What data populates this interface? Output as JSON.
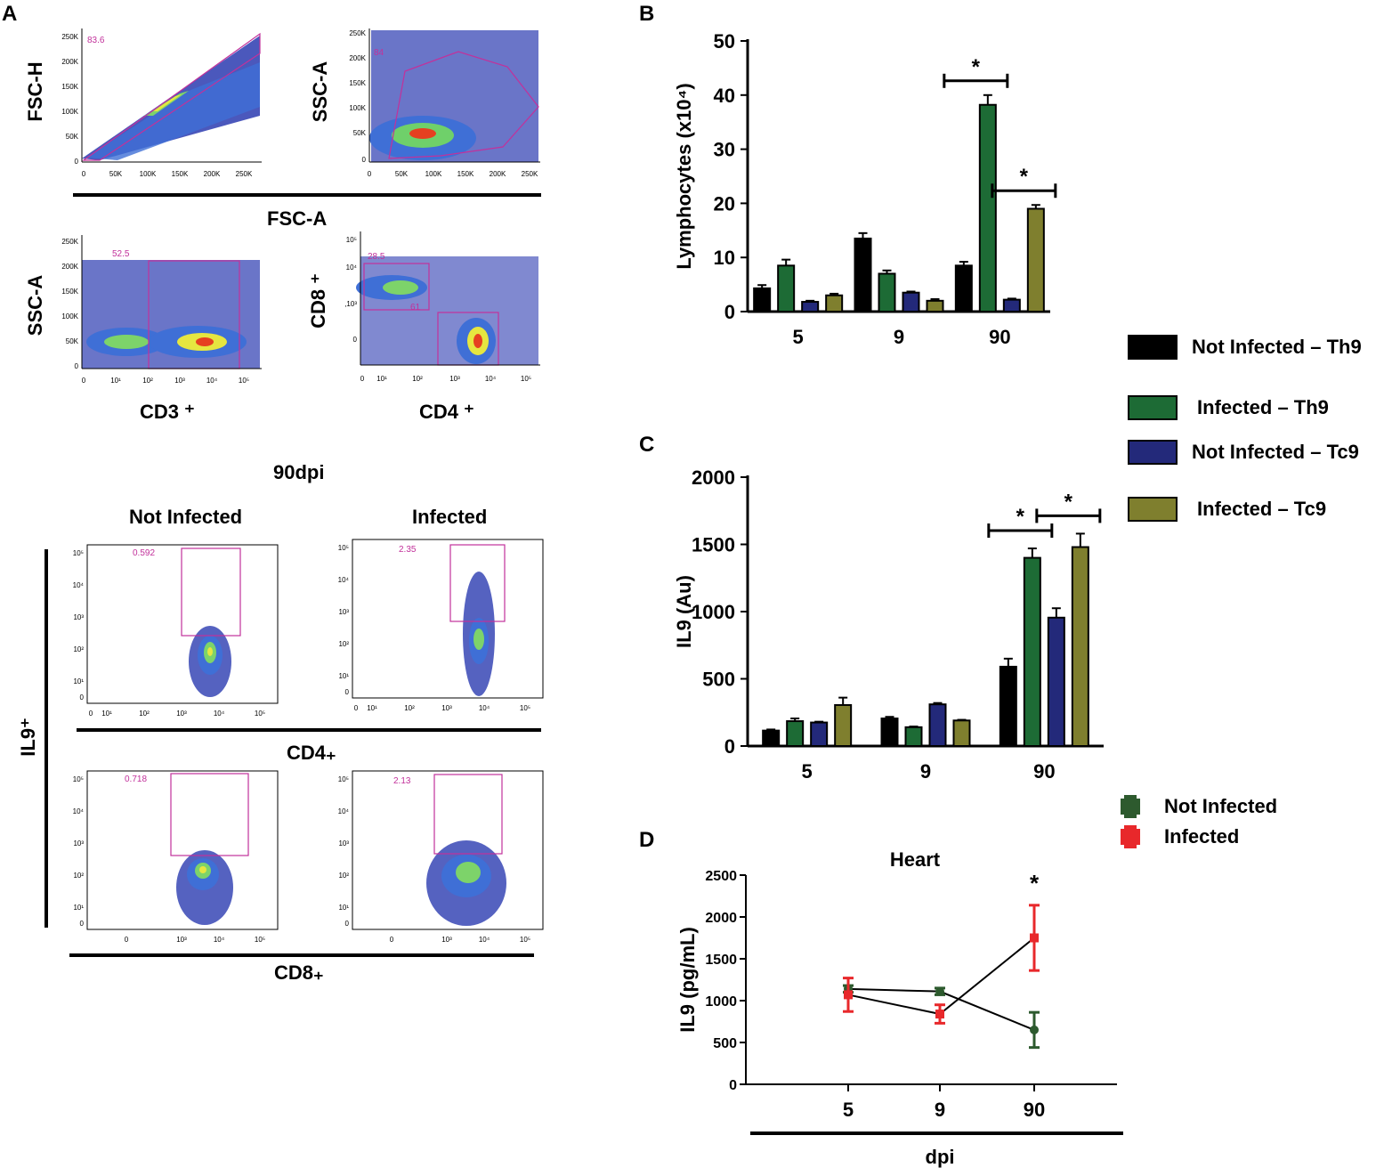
{
  "panels": {
    "A": "A",
    "B": "B",
    "C": "C",
    "D": "D"
  },
  "panel_a": {
    "top_row": {
      "plot1": {
        "ylabel": "FSC-H",
        "gate": "83.6",
        "yticks": [
          "250K",
          "200K",
          "150K",
          "100K",
          "50K",
          "0"
        ],
        "xticks": [
          "0",
          "50K",
          "100K",
          "150K",
          "200K",
          "250K"
        ]
      },
      "plot2": {
        "ylabel": "SSC-A",
        "gate": "84",
        "yticks": [
          "250K",
          "200K",
          "150K",
          "100K",
          "50K",
          "0"
        ],
        "xticks": [
          "0",
          "50K",
          "100K",
          "150K",
          "200K",
          "250K"
        ]
      },
      "xlabel": "FSC-A"
    },
    "second_row": {
      "plot3": {
        "ylabel": "SSC-A",
        "xlabel": "CD3 ⁺",
        "gate": "52.5",
        "yticks": [
          "250K",
          "200K",
          "150K",
          "100K",
          "50K",
          "0"
        ],
        "xticks": [
          "0",
          "10¹",
          "10²",
          "10³",
          "10⁴",
          "10⁵"
        ]
      },
      "plot4": {
        "ylabel": "CD8 ⁺",
        "xlabel": "CD4 ⁺",
        "gate1": "28.5",
        "gate2": "61",
        "yticks": [
          "10⁵",
          "10⁴",
          ",10³",
          "0"
        ],
        "xticks": [
          "0",
          "10¹",
          "10²",
          "10³",
          "10⁴",
          "10⁵"
        ]
      }
    },
    "title_90dpi": "90dpi",
    "not_infected": "Not Infected",
    "infected": "Infected",
    "il9_label": "IL9⁺",
    "cd4_label": "CD4₊",
    "cd8_label": "CD8₊",
    "il9_plots": [
      {
        "gate": "0.592"
      },
      {
        "gate": "2.35"
      },
      {
        "gate": "0.718"
      },
      {
        "gate": "2.13"
      }
    ],
    "il9_yticks": [
      "10⁵",
      "10⁴",
      "10³",
      "10²",
      "10¹",
      "0"
    ],
    "il9_xticks_cd4": [
      "0",
      "10¹",
      "10²",
      "10³",
      "10⁴",
      "10⁵"
    ],
    "il9_xticks_cd8": [
      "0",
      "10³",
      "10⁴",
      "10⁵"
    ]
  },
  "legend_bars": [
    {
      "label": "Not Infected – Th9",
      "color": "#000000"
    },
    {
      "label": "Infected – Th9",
      "color": "#1d6b35"
    },
    {
      "label": "Not Infected – Tc9",
      "color": "#23297a"
    },
    {
      "label": "Infected – Tc9",
      "color": "#7f7f2e"
    }
  ],
  "legend_lines": [
    {
      "label": "Not Infected",
      "color": "#2d5a2e"
    },
    {
      "label": "Infected",
      "color": "#e8282b"
    }
  ],
  "chart_data": [
    {
      "id": "B",
      "type": "bar",
      "categories": [
        "5",
        "9",
        "90"
      ],
      "series": [
        {
          "name": "Not Infected – Th9",
          "values": [
            4.3,
            13.5,
            8.5
          ],
          "errors": [
            0.6,
            1.0,
            0.7
          ]
        },
        {
          "name": "Infected – Th9",
          "values": [
            8.5,
            7.0,
            38.2
          ],
          "errors": [
            1.1,
            0.6,
            1.8
          ]
        },
        {
          "name": "Not Infected – Tc9",
          "values": [
            1.8,
            3.5,
            2.2
          ],
          "errors": [
            0.2,
            0.2,
            0.2
          ]
        },
        {
          "name": "Infected – Tc9",
          "values": [
            3.0,
            2.0,
            19.0
          ],
          "errors": [
            0.3,
            0.3,
            0.7
          ]
        }
      ],
      "ylabel": "Lymphocytes (x10⁴)",
      "ylim": [
        0,
        50
      ],
      "yticks": [
        "0",
        "10",
        "20",
        "30",
        "40",
        "50"
      ],
      "significance": [
        {
          "group": "90",
          "from": 0,
          "to": 1,
          "label": "*"
        },
        {
          "group": "90",
          "from": 2,
          "to": 3,
          "label": "*"
        }
      ]
    },
    {
      "id": "C",
      "type": "bar",
      "categories": [
        "5",
        "9",
        "90"
      ],
      "series": [
        {
          "name": "Not Infected – Th9",
          "values": [
            115,
            205,
            590
          ],
          "errors": [
            8,
            12,
            60
          ]
        },
        {
          "name": "Infected – Th9",
          "values": [
            185,
            140,
            1400
          ],
          "errors": [
            20,
            5,
            70
          ]
        },
        {
          "name": "Not Infected – Tc9",
          "values": [
            175,
            310,
            955
          ],
          "errors": [
            6,
            10,
            70
          ]
        },
        {
          "name": "Infected – Tc9",
          "values": [
            305,
            190,
            1480
          ],
          "errors": [
            55,
            5,
            100
          ]
        }
      ],
      "ylabel": "IL9 (Au)",
      "ylim": [
        0,
        2000
      ],
      "yticks": [
        "0",
        "500",
        "1000",
        "1500",
        "2000"
      ],
      "significance": [
        {
          "group": "90",
          "from": 0,
          "to": 1,
          "label": "*"
        },
        {
          "group": "90",
          "from": 2,
          "to": 3,
          "label": "*"
        }
      ]
    },
    {
      "id": "D",
      "type": "line",
      "title": "Heart",
      "x": [
        "5",
        "9",
        "90"
      ],
      "series": [
        {
          "name": "Not Infected",
          "values": [
            1140,
            1110,
            650
          ],
          "errors": [
            40,
            40,
            210
          ]
        },
        {
          "name": "Infected",
          "values": [
            1070,
            840,
            1750
          ],
          "errors": [
            200,
            110,
            390
          ]
        }
      ],
      "ylabel": "IL9 (pg/mL)",
      "xlabel": "dpi",
      "ylim": [
        0,
        2500
      ],
      "yticks": [
        "0",
        "500",
        "1000",
        "1500",
        "2000",
        "2500"
      ],
      "significance": [
        {
          "x": "90",
          "label": "*"
        }
      ]
    }
  ]
}
